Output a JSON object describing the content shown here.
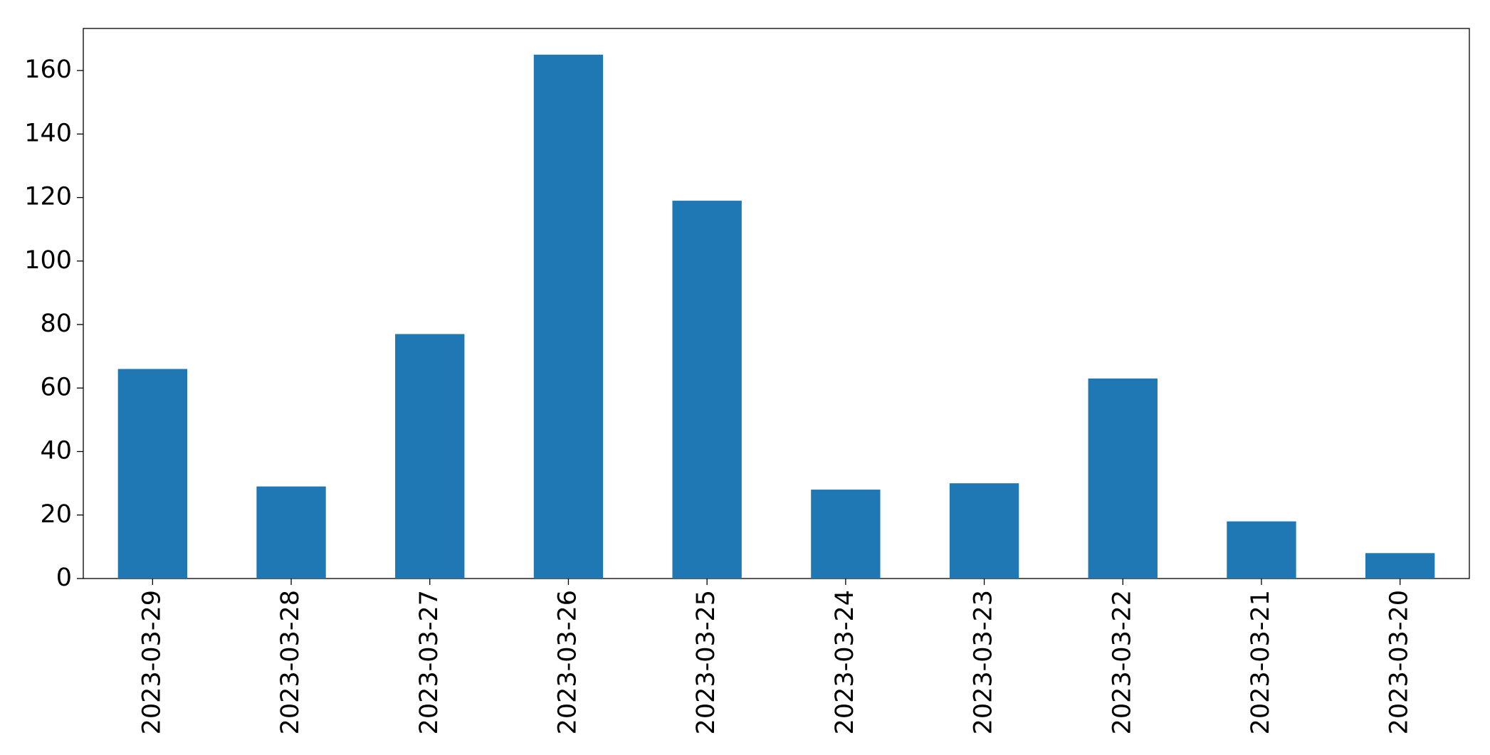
{
  "chart_data": {
    "type": "bar",
    "categories": [
      "2023-03-29",
      "2023-03-28",
      "2023-03-27",
      "2023-03-26",
      "2023-03-25",
      "2023-03-24",
      "2023-03-23",
      "2023-03-22",
      "2023-03-21",
      "2023-03-20"
    ],
    "values": [
      66,
      29,
      77,
      165,
      119,
      28,
      30,
      63,
      18,
      8
    ],
    "color": "#1f77b4",
    "ylim": [
      0,
      173.25
    ],
    "yticks": [
      0,
      20,
      40,
      60,
      80,
      100,
      120,
      140,
      160
    ],
    "grid": false
  }
}
